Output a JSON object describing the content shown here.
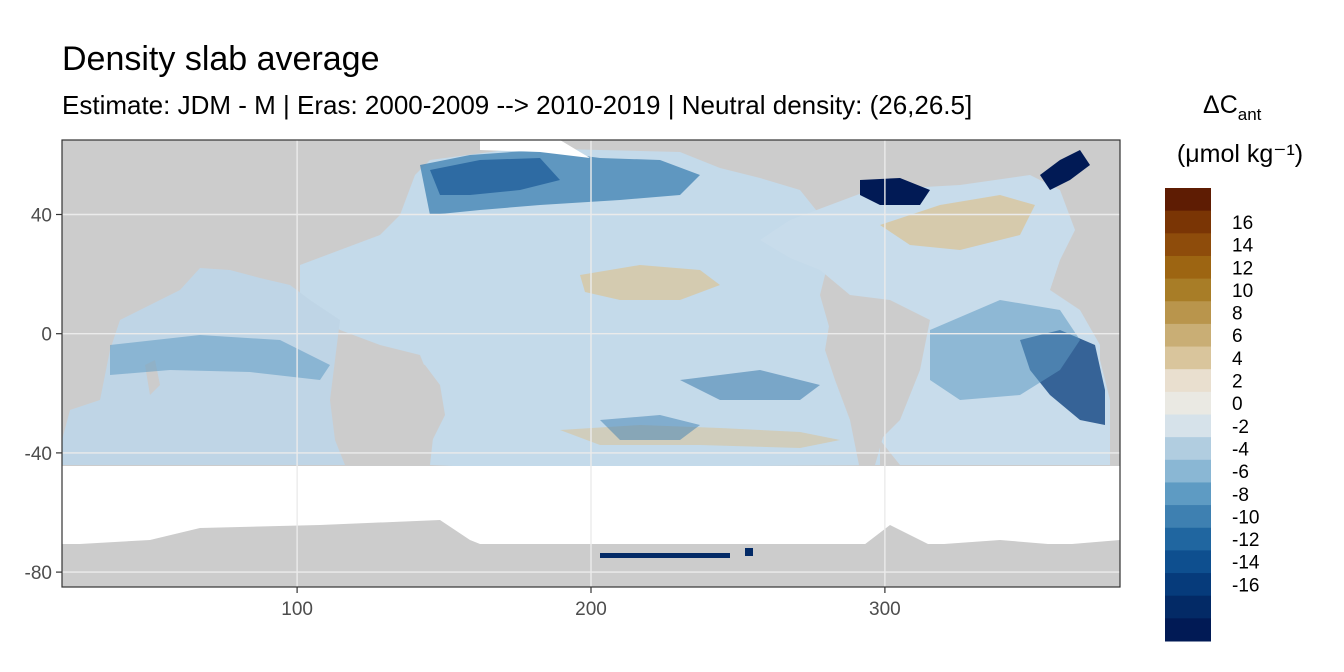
{
  "title": "Density slab average",
  "subtitle": "Estimate: JDM - M | Eras: 2000-2009 --> 2010-2019 | Neutral density: (26,26.5]",
  "chart_data": {
    "type": "heatmap",
    "title": "Density slab average",
    "subtitle": "Estimate: JDM - M | Eras: 2000-2009 --> 2010-2019 | Neutral density: (26,26.5]",
    "x_ticks": [
      100,
      200,
      300
    ],
    "y_ticks": [
      40,
      0,
      -40,
      -80
    ],
    "xlim": [
      20,
      380
    ],
    "ylim": [
      -85,
      65
    ],
    "grid": true,
    "legend": {
      "position": "right",
      "title_main": "ΔC",
      "title_sub": "ant",
      "title_unit": "(μmol kg⁻¹)",
      "labels": [
        "16",
        "14",
        "12",
        "10",
        "8",
        "6",
        "4",
        "2",
        "0",
        "-2",
        "-4",
        "-6",
        "-8",
        "-10",
        "-12",
        "-14",
        "-16"
      ],
      "colors": [
        "#5e1c03",
        "#7a3505",
        "#8e4c0b",
        "#9d6512",
        "#a87d27",
        "#b9954c",
        "#c9ae75",
        "#d9c59c",
        "#e9dfcf",
        "#eae9e3",
        "#d6e2ea",
        "#b1cde0",
        "#8ab7d4",
        "#5e9bc3",
        "#3e80b1",
        "#2066a0",
        "#0e4f8f",
        "#063b7b",
        "#032a66",
        "#011a55"
      ]
    },
    "colors": {
      "land": "#cccccc",
      "no_data": "#ffffff",
      "panel_border": "#333333",
      "grid": "#ebebeb"
    }
  }
}
